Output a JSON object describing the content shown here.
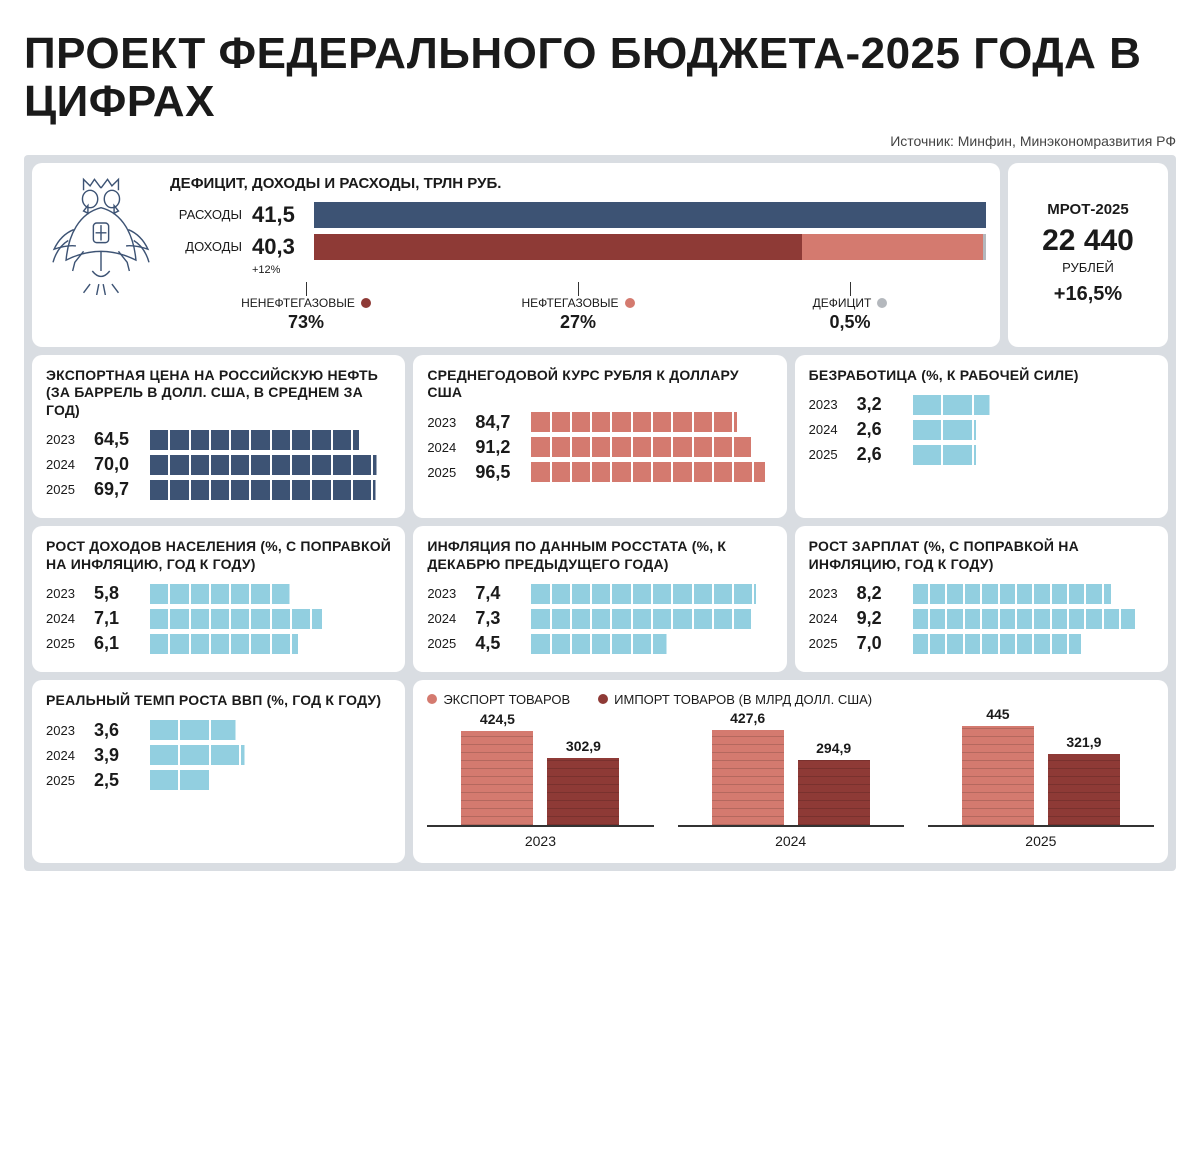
{
  "title": "ПРОЕКТ ФЕДЕРАЛЬНОГО БЮДЖЕТА-2025 ГОДА В ЦИФРАХ",
  "source": "Источник: Минфин, Минэкономразвития РФ",
  "colors": {
    "panel_bg": "#d9dde2",
    "card_bg": "#ffffff",
    "blue_dark": "#3d5374",
    "red_dark": "#8e3a36",
    "red_light": "#d47a6f",
    "grey": "#b4b8bd",
    "cyan": "#92cfe0"
  },
  "deficit": {
    "header": "ДЕФИЦИТ, ДОХОДЫ И РАСХОДЫ, ТРЛН РУБ.",
    "rows": [
      {
        "label": "РАСХОДЫ",
        "value": "41,5",
        "segments": [
          {
            "pct": 100,
            "color": "#3d5374"
          }
        ]
      },
      {
        "label": "ДОХОДЫ",
        "value": "40,3",
        "note": "+12%",
        "segments": [
          {
            "pct": 73,
            "color": "#8e3a36"
          },
          {
            "pct": 27,
            "color": "#d47a6f"
          },
          {
            "pct": 0.5,
            "color": "#b4b8bd"
          }
        ]
      }
    ],
    "legend": [
      {
        "label": "НЕНЕФТЕГАЗОВЫЕ",
        "pct": "73%",
        "color": "#8e3a36"
      },
      {
        "label": "НЕФТЕГАЗОВЫЕ",
        "pct": "27%",
        "color": "#d47a6f"
      },
      {
        "label": "ДЕФИЦИТ",
        "pct": "0,5%",
        "color": "#b4b8bd"
      }
    ]
  },
  "mrot": {
    "title": "МРОТ-2025",
    "value": "22 440",
    "unit": "РУБЛЕЙ",
    "change": "+16,5%"
  },
  "cards": {
    "oil": {
      "title": "ЭКСПОРТНАЯ ЦЕНА НА РОССИЙСКУЮ НЕФТЬ (ЗА БАРРЕЛЬ В ДОЛЛ. США, В СРЕДНЕМ ЗА ГОД)",
      "color": "#3d5374",
      "max": 75,
      "rows": [
        {
          "year": "2023",
          "value": 64.5,
          "label": "64,5"
        },
        {
          "year": "2024",
          "value": 70.0,
          "label": "70,0"
        },
        {
          "year": "2025",
          "value": 69.7,
          "label": "69,7"
        }
      ],
      "segments": 12
    },
    "usd": {
      "title": "СРЕДНЕГОДОВОЙ КУРС РУБЛЯ К ДОЛЛАРУ США",
      "color": "#d47a6f",
      "max": 100,
      "rows": [
        {
          "year": "2023",
          "value": 84.7,
          "label": "84,7"
        },
        {
          "year": "2024",
          "value": 91.2,
          "label": "91,2"
        },
        {
          "year": "2025",
          "value": 96.5,
          "label": "96,5"
        }
      ],
      "segments": 12
    },
    "unemp": {
      "title": "БЕЗРАБОТИЦА (%, К РАБОЧЕЙ СИЛЕ)",
      "color": "#92cfe0",
      "max": 10,
      "rows": [
        {
          "year": "2023",
          "value": 3.2,
          "label": "3,2"
        },
        {
          "year": "2024",
          "value": 2.6,
          "label": "2,6"
        },
        {
          "year": "2025",
          "value": 2.6,
          "label": "2,6"
        }
      ],
      "segments": 8
    },
    "income": {
      "title": "РОСТ ДОХОДОВ НАСЕЛЕНИЯ (%, С ПОПРАВКОЙ НА ИНФЛЯЦИЮ, ГОД К ГОДУ)",
      "color": "#92cfe0",
      "max": 10,
      "rows": [
        {
          "year": "2023",
          "value": 5.8,
          "label": "5,8"
        },
        {
          "year": "2024",
          "value": 7.1,
          "label": "7,1"
        },
        {
          "year": "2025",
          "value": 6.1,
          "label": "6,1"
        }
      ],
      "segments": 12
    },
    "inflation": {
      "title": "ИНФЛЯЦИЯ ПО ДАННЫМ РОССТАТА (%, К ДЕКАБРЮ ПРЕДЫДУЩЕГО ГОДА)",
      "color": "#92cfe0",
      "max": 8,
      "rows": [
        {
          "year": "2023",
          "value": 7.4,
          "label": "7,4"
        },
        {
          "year": "2024",
          "value": 7.3,
          "label": "7,3"
        },
        {
          "year": "2025",
          "value": 4.5,
          "label": "4,5"
        }
      ],
      "segments": 12
    },
    "wages": {
      "title": "РОСТ ЗАРПЛАТ (%, С ПОПРАВКОЙ НА ИНФЛЯЦИЮ, ГОД К ГОДУ)",
      "color": "#92cfe0",
      "max": 10,
      "rows": [
        {
          "year": "2023",
          "value": 8.2,
          "label": "8,2"
        },
        {
          "year": "2024",
          "value": 9.2,
          "label": "9,2"
        },
        {
          "year": "2025",
          "value": 7.0,
          "label": "7,0"
        }
      ],
      "segments": 14
    },
    "gdp": {
      "title": "РЕАЛЬНЫЙ ТЕМП РОСТА ВВП (%, ГОД К ГОДУ)",
      "color": "#92cfe0",
      "max": 10,
      "rows": [
        {
          "year": "2023",
          "value": 3.6,
          "label": "3,6"
        },
        {
          "year": "2024",
          "value": 3.9,
          "label": "3,9"
        },
        {
          "year": "2025",
          "value": 2.5,
          "label": "2,5"
        }
      ],
      "segments": 8
    }
  },
  "trade": {
    "legend": [
      {
        "label": "ЭКСПОРТ ТОВАРОВ",
        "color": "#d47a6f"
      },
      {
        "label": "ИМПОРТ ТОВАРОВ  (В МЛРД ДОЛЛ. США)",
        "color": "#8e3a36"
      }
    ],
    "max": 450,
    "groups": [
      {
        "year": "2023",
        "export": 424.5,
        "export_label": "424,5",
        "import": 302.9,
        "import_label": "302,9"
      },
      {
        "year": "2024",
        "export": 427.6,
        "export_label": "427,6",
        "import": 294.9,
        "import_label": "294,9"
      },
      {
        "year": "2025",
        "export": 445,
        "export_label": "445",
        "import": 321.9,
        "import_label": "321,9"
      }
    ]
  }
}
